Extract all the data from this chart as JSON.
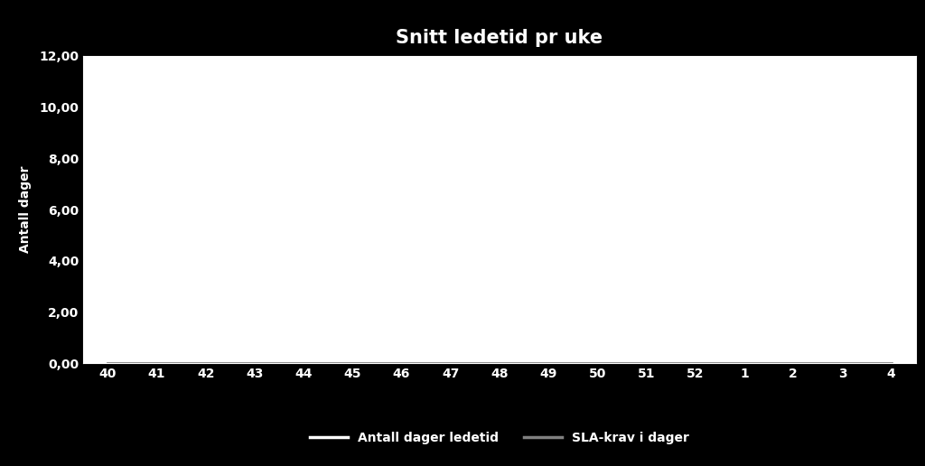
{
  "title": "Snitt ledetid pr uke",
  "xlabel": "",
  "ylabel": "Antall dager",
  "x_labels": [
    "40",
    "41",
    "42",
    "43",
    "44",
    "45",
    "46",
    "47",
    "48",
    "49",
    "50",
    "51",
    "52",
    "1",
    "2",
    "3",
    "4"
  ],
  "y_data": [
    0,
    0,
    0,
    0,
    0,
    0,
    0,
    0,
    0,
    0,
    0,
    0,
    0,
    0,
    0,
    0,
    0
  ],
  "sla_data": [
    0,
    0,
    0,
    0,
    0,
    0,
    0,
    0,
    0,
    0,
    0,
    0,
    0,
    0,
    0,
    0,
    0
  ],
  "ylim": [
    0,
    12
  ],
  "yticks": [
    0,
    2,
    4,
    6,
    8,
    10,
    12
  ],
  "ytick_labels": [
    "0,00",
    "2,00",
    "4,00",
    "6,00",
    "8,00",
    "10,00",
    "12,00"
  ],
  "line1_color": "#ffffff",
  "line2_color": "#808080",
  "line1_label": "Antall dager ledetid",
  "line2_label": "SLA-krav i dager",
  "background_color": "#000000",
  "plot_bg_color": "#ffffff",
  "text_color": "#ffffff",
  "title_fontsize": 15,
  "axis_label_fontsize": 10,
  "tick_fontsize": 10,
  "legend_fontsize": 10
}
